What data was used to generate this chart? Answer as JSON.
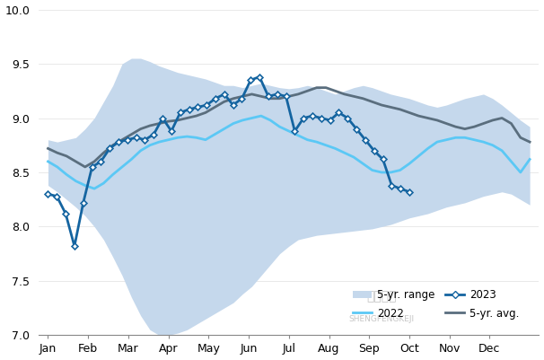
{
  "months": [
    "Jan",
    "Feb",
    "Mar",
    "Apr",
    "May",
    "Jun",
    "Jul",
    "Aug",
    "Sep",
    "Oct",
    "Nov",
    "Dec"
  ],
  "range_upper": [
    8.8,
    8.78,
    8.8,
    8.82,
    8.9,
    9.0,
    9.15,
    9.3,
    9.5,
    9.55,
    9.55,
    9.52,
    9.48,
    9.45,
    9.42,
    9.4,
    9.38,
    9.36,
    9.33,
    9.3,
    9.3,
    9.28,
    9.3,
    9.32,
    9.3,
    9.28,
    9.27,
    9.28,
    9.3,
    9.28,
    9.25,
    9.22,
    9.25,
    9.28,
    9.3,
    9.28,
    9.25,
    9.22,
    9.2,
    9.18,
    9.15,
    9.12,
    9.1,
    9.12,
    9.15,
    9.18,
    9.2,
    9.22,
    9.18,
    9.12,
    9.05,
    8.98,
    8.92
  ],
  "range_lower": [
    8.38,
    8.32,
    8.25,
    8.18,
    8.1,
    8.0,
    7.88,
    7.72,
    7.55,
    7.35,
    7.18,
    7.05,
    7.0,
    7.0,
    7.02,
    7.05,
    7.1,
    7.15,
    7.2,
    7.25,
    7.3,
    7.38,
    7.45,
    7.55,
    7.65,
    7.75,
    7.82,
    7.88,
    7.9,
    7.92,
    7.93,
    7.94,
    7.95,
    7.96,
    7.97,
    7.98,
    8.0,
    8.02,
    8.05,
    8.08,
    8.1,
    8.12,
    8.15,
    8.18,
    8.2,
    8.22,
    8.25,
    8.28,
    8.3,
    8.32,
    8.3,
    8.25,
    8.2
  ],
  "avg_5yr": [
    8.72,
    8.68,
    8.65,
    8.6,
    8.55,
    8.6,
    8.68,
    8.75,
    8.8,
    8.85,
    8.9,
    8.93,
    8.95,
    8.97,
    8.98,
    9.0,
    9.02,
    9.05,
    9.1,
    9.15,
    9.18,
    9.2,
    9.22,
    9.2,
    9.18,
    9.18,
    9.2,
    9.22,
    9.25,
    9.28,
    9.28,
    9.25,
    9.22,
    9.2,
    9.18,
    9.15,
    9.12,
    9.1,
    9.08,
    9.05,
    9.02,
    9.0,
    8.98,
    8.95,
    8.92,
    8.9,
    8.92,
    8.95,
    8.98,
    9.0,
    8.95,
    8.82,
    8.78
  ],
  "line_2022": [
    8.6,
    8.55,
    8.48,
    8.42,
    8.38,
    8.35,
    8.4,
    8.48,
    8.55,
    8.62,
    8.7,
    8.75,
    8.78,
    8.8,
    8.82,
    8.83,
    8.82,
    8.8,
    8.85,
    8.9,
    8.95,
    8.98,
    9.0,
    9.02,
    8.98,
    8.92,
    8.88,
    8.84,
    8.8,
    8.78,
    8.75,
    8.72,
    8.68,
    8.64,
    8.58,
    8.52,
    8.5,
    8.5,
    8.52,
    8.58,
    8.65,
    8.72,
    8.78,
    8.8,
    8.82,
    8.82,
    8.8,
    8.78,
    8.75,
    8.7,
    8.6,
    8.5,
    8.62
  ],
  "line_2023": [
    8.3,
    8.28,
    8.12,
    7.82,
    8.22,
    8.55,
    8.6,
    8.72,
    8.78,
    8.8,
    8.82,
    8.8,
    8.85,
    9.0,
    8.88,
    9.05,
    9.08,
    9.1,
    9.12,
    9.18,
    9.22,
    9.12,
    9.18,
    9.35,
    9.38,
    9.2,
    9.22,
    9.2,
    8.88,
    9.0,
    9.02,
    9.0,
    8.98,
    9.05,
    9.0,
    8.9,
    8.8,
    8.7,
    8.62,
    8.38,
    8.35,
    8.32
  ],
  "range_color": "#c5d8ec",
  "avg_color": "#5a6e7e",
  "color_2022": "#5bc8f5",
  "color_2023": "#1464a0",
  "ylim": [
    7.0,
    10.0
  ],
  "yticks": [
    7.0,
    7.5,
    8.0,
    8.5,
    9.0,
    9.5,
    10.0
  ],
  "bg_color": "#ffffff"
}
